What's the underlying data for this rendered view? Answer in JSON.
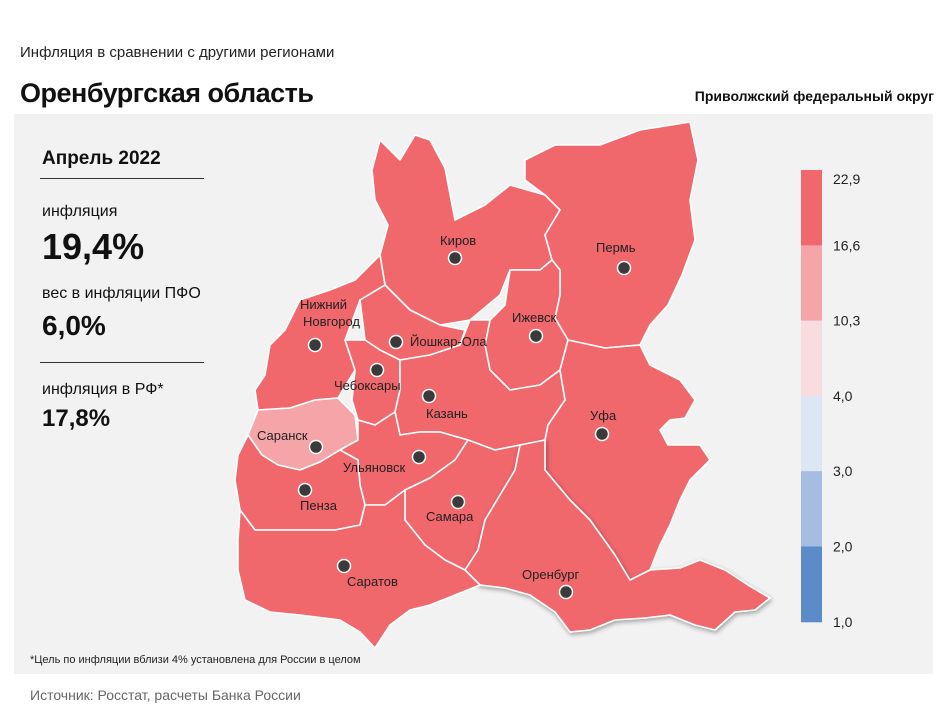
{
  "header": {
    "subtitle": "Инфляция  в сравнении  с другими  регионами",
    "title": "Оренбургская область",
    "district": "Приволжский федеральный округ"
  },
  "stats": {
    "month": "Апрель 2022",
    "inflation_label": "инфляция",
    "inflation_value": "19,4%",
    "weight_label": "вес в инфляции  ПФО",
    "weight_value": "6,0%",
    "rf_label": "инфляция  в РФ*",
    "rf_value": "17,8%"
  },
  "legend": {
    "ticks": [
      "22,9",
      "16,6",
      "10,3",
      "4,0",
      "3,0",
      "2,0",
      "1,0"
    ],
    "colors": [
      "#f0676c",
      "#f5a5a7",
      "#f9dcdd",
      "#dde6f3",
      "#a4bde0",
      "#5b8bc9"
    ]
  },
  "map": {
    "fill_high": "#f0676c",
    "fill_mid": "#f5a5a7",
    "cities": [
      {
        "name": "Киров"
      },
      {
        "name": "Пермь"
      },
      {
        "name": "Ижевск"
      },
      {
        "name": "Нижний Новгород"
      },
      {
        "name": "Йошкар-Ола"
      },
      {
        "name": "Чебоксары"
      },
      {
        "name": "Казань"
      },
      {
        "name": "Уфа"
      },
      {
        "name": "Саранск"
      },
      {
        "name": "Ульяновск"
      },
      {
        "name": "Пенза"
      },
      {
        "name": "Самара"
      },
      {
        "name": "Оренбург"
      },
      {
        "name": "Саратов"
      }
    ]
  },
  "footnote": "*Цель по инфляции вблизи 4% установлена для России в целом",
  "source": "Источник: Росстат, расчеты Банка России"
}
